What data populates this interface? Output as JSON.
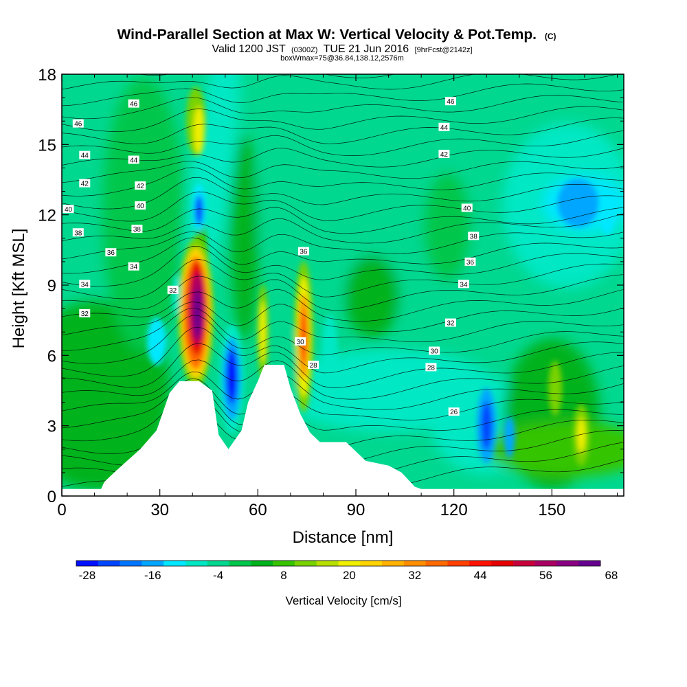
{
  "header": {
    "title_main": "Wind-Parallel Section at Max W: Vertical Velocity & Pot.Temp.",
    "title_copyright": "(C)",
    "subtitle_a": "Valid 1200 JST",
    "subtitle_b": "(0300Z)",
    "subtitle_c": "TUE 21 Jun 2016",
    "subtitle_d": "[9hrFcst@2142z]",
    "subtitle_line3": "boxWmax=75@36.84,138.12,2576m"
  },
  "chart_data": {
    "type": "heatmap",
    "xlabel": "Distance [nm]",
    "ylabel": "Height [Kft MSL]",
    "xlim": [
      0,
      172
    ],
    "ylim": [
      0,
      18
    ],
    "x_ticks": [
      0,
      30,
      60,
      90,
      120,
      150
    ],
    "y_ticks": [
      0,
      3,
      6,
      9,
      12,
      15,
      18
    ],
    "colorbar": {
      "label": "Vertical Velocity [cm/s]",
      "tick_labels": [
        -28,
        -16,
        -4,
        8,
        20,
        32,
        44,
        56,
        68
      ],
      "levels_min": -28,
      "levels_step": 4,
      "colors": [
        "#0010ff",
        "#0046ff",
        "#0076ff",
        "#00a6ff",
        "#00e8ff",
        "#00e8c4",
        "#00d890",
        "#00c74c",
        "#00b21c",
        "#36c400",
        "#7ad200",
        "#b8e000",
        "#f0f000",
        "#ffd400",
        "#ffb200",
        "#ff8e00",
        "#ff6a00",
        "#ff4000",
        "#ff1200",
        "#e60000",
        "#c8003c",
        "#aa0064",
        "#8a0082",
        "#66008e"
      ]
    },
    "potential_temperature_labels": [
      {
        "value": 46,
        "x": 5,
        "y": 15.9
      },
      {
        "value": 46,
        "x": 22,
        "y": 16.75
      },
      {
        "value": 46,
        "x": 119,
        "y": 16.85
      },
      {
        "value": 44,
        "x": 7,
        "y": 14.55
      },
      {
        "value": 44,
        "x": 22,
        "y": 14.35
      },
      {
        "value": 44,
        "x": 117,
        "y": 15.75
      },
      {
        "value": 42,
        "x": 7,
        "y": 13.35
      },
      {
        "value": 42,
        "x": 24,
        "y": 13.25
      },
      {
        "value": 42,
        "x": 117,
        "y": 14.6
      },
      {
        "value": 40,
        "x": 2,
        "y": 12.25
      },
      {
        "value": 40,
        "x": 24,
        "y": 12.4
      },
      {
        "value": 40,
        "x": 124,
        "y": 12.3
      },
      {
        "value": 38,
        "x": 5,
        "y": 11.25
      },
      {
        "value": 38,
        "x": 23,
        "y": 11.4
      },
      {
        "value": 38,
        "x": 126,
        "y": 11.1
      },
      {
        "value": 36,
        "x": 15,
        "y": 10.4
      },
      {
        "value": 36,
        "x": 74,
        "y": 10.45
      },
      {
        "value": 36,
        "x": 125,
        "y": 10.0
      },
      {
        "value": 34,
        "x": 7,
        "y": 9.05
      },
      {
        "value": 34,
        "x": 22,
        "y": 9.8
      },
      {
        "value": 34,
        "x": 123,
        "y": 9.05
      },
      {
        "value": 32,
        "x": 7,
        "y": 7.8
      },
      {
        "value": 32,
        "x": 34,
        "y": 8.8
      },
      {
        "value": 32,
        "x": 119,
        "y": 7.4
      },
      {
        "value": 30,
        "x": 73,
        "y": 6.6
      },
      {
        "value": 30,
        "x": 114,
        "y": 6.2
      },
      {
        "value": 28,
        "x": 77,
        "y": 5.6
      },
      {
        "value": 28,
        "x": 113,
        "y": 5.5
      },
      {
        "value": 26,
        "x": 120,
        "y": 3.6
      }
    ],
    "terrain_profile": [
      [
        0,
        0.3
      ],
      [
        12,
        0.3
      ],
      [
        13,
        0.6
      ],
      [
        16,
        1.0
      ],
      [
        20,
        1.5
      ],
      [
        24,
        2.0
      ],
      [
        29,
        2.8
      ],
      [
        33,
        4.4
      ],
      [
        36,
        4.9
      ],
      [
        42,
        4.9
      ],
      [
        46,
        4.5
      ],
      [
        48,
        2.6
      ],
      [
        51,
        2.0
      ],
      [
        55,
        2.8
      ],
      [
        57,
        4.0
      ],
      [
        60,
        4.9
      ],
      [
        62,
        5.6
      ],
      [
        68,
        5.6
      ],
      [
        70,
        4.6
      ],
      [
        73,
        3.5
      ],
      [
        76,
        2.7
      ],
      [
        79,
        2.3
      ],
      [
        87,
        2.3
      ],
      [
        93,
        1.5
      ],
      [
        100,
        1.3
      ],
      [
        104,
        1.0
      ],
      [
        106,
        0.7
      ],
      [
        108,
        0.4
      ],
      [
        110,
        0.3
      ],
      [
        172,
        0.3
      ]
    ],
    "vertical_velocity_features": [
      {
        "x": 41.5,
        "y": 8.0,
        "w_cm_s": 70
      },
      {
        "x": 74.0,
        "y": 6.8,
        "w_cm_s": 42
      },
      {
        "x": 61.5,
        "y": 7.0,
        "w_cm_s": 22
      },
      {
        "x": 42.0,
        "y": 16.0,
        "w_cm_s": 20
      },
      {
        "x": 52.0,
        "y": 5.2,
        "w_cm_s": -26
      },
      {
        "x": 42.0,
        "y": 12.3,
        "w_cm_s": -24
      },
      {
        "x": 29.0,
        "y": 6.6,
        "w_cm_s": -16
      },
      {
        "x": 130.0,
        "y": 3.0,
        "w_cm_s": -22
      },
      {
        "x": 137.0,
        "y": 2.4,
        "w_cm_s": -18
      },
      {
        "x": 158.0,
        "y": 12.5,
        "w_cm_s": -20
      },
      {
        "x": 166.0,
        "y": 12.0,
        "w_cm_s": -16
      },
      {
        "x": 159.0,
        "y": 2.6,
        "w_cm_s": 18
      },
      {
        "x": 151.0,
        "y": 4.6,
        "w_cm_s": 14
      }
    ]
  }
}
